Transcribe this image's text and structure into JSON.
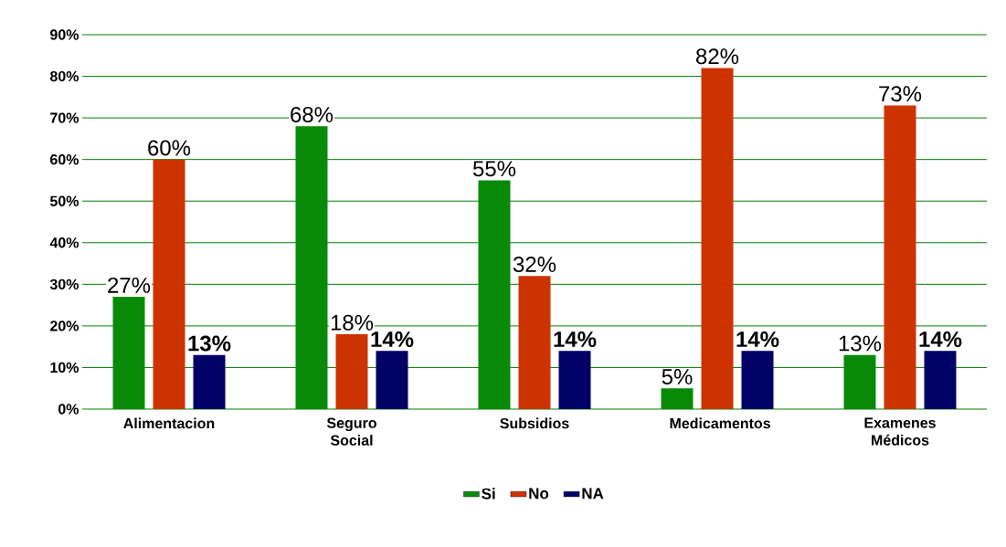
{
  "chart_data": {
    "type": "bar",
    "categories": [
      "Alimentacion",
      "Seguro Social",
      "Subsidios",
      "Medicamentos",
      "Examenes Médicos"
    ],
    "series": [
      {
        "name": "Si",
        "color": "#088a08",
        "values": [
          27,
          68,
          55,
          5,
          13
        ],
        "value_labels": [
          "27%",
          "68%",
          "55%",
          "5%",
          "13%"
        ]
      },
      {
        "name": "No",
        "color": "#cc3300",
        "values": [
          60,
          18,
          32,
          82,
          73
        ],
        "value_labels": [
          "60%",
          "18%",
          "32%",
          "82%",
          "73%"
        ]
      },
      {
        "name": "NA",
        "color": "#000066",
        "values": [
          13,
          14,
          14,
          14,
          14
        ],
        "value_labels": [
          "**13%**",
          "**14%**",
          "**14%**",
          "**14%**",
          "**14%**"
        ]
      }
    ],
    "ylim": [
      0,
      90
    ],
    "yticks": [
      {
        "value": 0,
        "label": "0%"
      },
      {
        "value": 10,
        "label": "10%"
      },
      {
        "value": 20,
        "label": "20%"
      },
      {
        "value": 30,
        "label": "30%"
      },
      {
        "value": 40,
        "label": "40%"
      },
      {
        "value": 50,
        "label": "50%"
      },
      {
        "value": 60,
        "label": "60%"
      },
      {
        "value": 70,
        "label": "70%"
      },
      {
        "value": 80,
        "label": "80%"
      },
      {
        "value": 90,
        "label": "90%"
      }
    ],
    "grid": "y",
    "legend": "bottom"
  }
}
